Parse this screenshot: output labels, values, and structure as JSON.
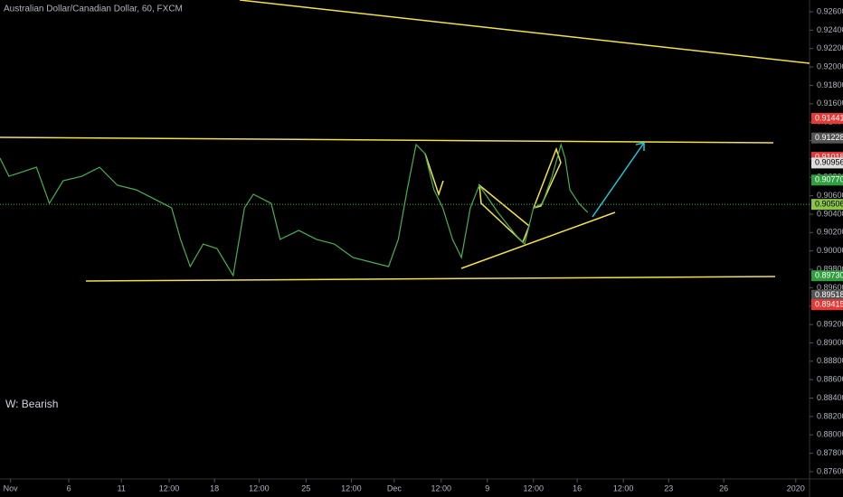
{
  "chart_data": {
    "type": "line",
    "title": "Australian Dollar/Canadian Dollar, 60, FXCM",
    "annotation": "W: Bearish",
    "color": "#4caf50",
    "x": [
      0,
      1.1,
      2.8,
      4.5,
      6.1,
      7.8,
      10.1,
      12.3,
      14.5,
      16.8,
      19,
      21.2,
      22.3,
      23.5,
      25.1,
      26.8,
      28.8,
      30.2,
      31.3,
      33.5,
      34.6,
      36.9,
      39.1,
      41.3,
      43.6,
      45.8,
      48,
      49.2,
      50.3,
      51.4,
      52.5,
      53.6,
      54.7,
      55.9,
      57,
      58.1,
      59.2,
      61.5,
      63.7,
      64.8,
      65.9,
      67,
      68.2,
      69.3,
      69.8,
      70.4,
      71.5,
      72.6
    ],
    "values": [
      0.91009,
      0.90812,
      0.90861,
      0.9091,
      0.90517,
      0.90763,
      0.90812,
      0.9091,
      0.90714,
      0.90665,
      0.90567,
      0.90468,
      0.90125,
      0.8983,
      0.90075,
      0.90026,
      0.89732,
      0.90468,
      0.90616,
      0.90517,
      0.90125,
      0.90223,
      0.90125,
      0.90075,
      0.89928,
      0.89879,
      0.8983,
      0.90125,
      0.90665,
      0.91156,
      0.91058,
      0.90665,
      0.90468,
      0.90125,
      0.89928,
      0.90468,
      0.90714,
      0.90419,
      0.90174,
      0.90075,
      0.90468,
      0.90517,
      0.90812,
      0.91156,
      0.91009,
      0.90665,
      0.90517,
      0.90419
    ],
    "xlim": [
      0,
      100
    ],
    "xticks": [
      {
        "value": 1.3,
        "label": "Nov"
      },
      {
        "value": 8.5,
        "label": "6"
      },
      {
        "value": 15,
        "label": "11"
      },
      {
        "value": 20.9,
        "label": "12:00"
      },
      {
        "value": 26.5,
        "label": "18"
      },
      {
        "value": 32,
        "label": "12:00"
      },
      {
        "value": 37.8,
        "label": "25"
      },
      {
        "value": 43.4,
        "label": "12:00"
      },
      {
        "value": 48.7,
        "label": "Dec"
      },
      {
        "value": 54.5,
        "label": "12:00"
      },
      {
        "value": 60.2,
        "label": "9"
      },
      {
        "value": 65.9,
        "label": "12:00"
      },
      {
        "value": 71.3,
        "label": "16"
      },
      {
        "value": 77,
        "label": "12:00"
      },
      {
        "value": 82.6,
        "label": "23"
      },
      {
        "value": 89.4,
        "label": "26"
      },
      {
        "value": 98.3,
        "label": "2020"
      }
    ],
    "ylim": [
      0.87521,
      0.92728
    ],
    "yticks": [
      {
        "value": 0.926,
        "label": "0.92600"
      },
      {
        "value": 0.924,
        "label": "0.92400"
      },
      {
        "value": 0.922,
        "label": "0.92200"
      },
      {
        "value": 0.92,
        "label": "0.92000"
      },
      {
        "value": 0.918,
        "label": "0.91800"
      },
      {
        "value": 0.916,
        "label": "0.91600"
      },
      {
        "value": 0.914,
        "label": "0.91400"
      },
      {
        "value": 0.912,
        "label": "0.91200"
      },
      {
        "value": 0.91,
        "label": "0.91000"
      },
      {
        "value": 0.908,
        "label": "0.90800"
      },
      {
        "value": 0.906,
        "label": "0.90600"
      },
      {
        "value": 0.904,
        "label": "0.90400"
      },
      {
        "value": 0.902,
        "label": "0.90200"
      },
      {
        "value": 0.9,
        "label": "0.90000"
      },
      {
        "value": 0.898,
        "label": "0.89800"
      },
      {
        "value": 0.896,
        "label": "0.89600"
      },
      {
        "value": 0.894,
        "label": "0.89400"
      },
      {
        "value": 0.892,
        "label": "0.89200"
      },
      {
        "value": 0.89,
        "label": "0.89000"
      },
      {
        "value": 0.888,
        "label": "0.88800"
      },
      {
        "value": 0.886,
        "label": "0.88600"
      },
      {
        "value": 0.884,
        "label": "0.88400"
      },
      {
        "value": 0.882,
        "label": "0.88200"
      },
      {
        "value": 0.88,
        "label": "0.88000"
      },
      {
        "value": 0.878,
        "label": "0.87800"
      },
      {
        "value": 0.876,
        "label": "0.87600"
      }
    ],
    "price_labels": [
      {
        "value": 0.91441,
        "label": "0.91441",
        "color": "#e53935"
      },
      {
        "value": 0.91228,
        "label": "0.91228",
        "color": "#555555"
      },
      {
        "value": 0.91018,
        "label": "0.91018",
        "color": "#e53935"
      },
      {
        "value": 0.90956,
        "label": "0.90956",
        "color": "#dddddd"
      },
      {
        "value": 0.9077,
        "label": "0.90770",
        "color": "#2e9e3e"
      },
      {
        "value": 0.90506,
        "label": "0.90506",
        "color": "#8bc34a"
      },
      {
        "value": 0.8973,
        "label": "0.89730",
        "color": "#2e9e3e"
      },
      {
        "value": 0.89518,
        "label": "0.89518",
        "color": "#555555"
      },
      {
        "value": 0.89415,
        "label": "0.89415",
        "color": "#e53935"
      }
    ],
    "current_price_index": 5
  }
}
